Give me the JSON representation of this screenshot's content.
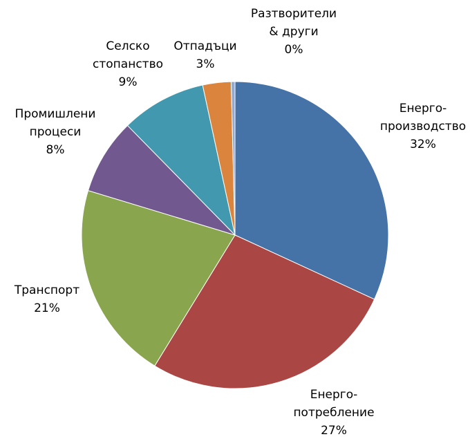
{
  "chart_data": {
    "type": "pie",
    "categories": [
      [
        "Енерго-",
        "производство"
      ],
      [
        "Енерго-",
        "потребление"
      ],
      [
        "Транспорт"
      ],
      [
        "Промишлени",
        "процеси"
      ],
      [
        "Селско",
        "стопанство"
      ],
      [
        "Отпадъци"
      ],
      [
        "Разтворители",
        "& други"
      ]
    ],
    "values": [
      32,
      27,
      21,
      8,
      9,
      3,
      0.4
    ],
    "value_labels": [
      "32%",
      "27%",
      "21%",
      "8%",
      "9%",
      "3%",
      "0%"
    ],
    "colors": [
      "#4572a7",
      "#aa4643",
      "#89a54e",
      "#71588f",
      "#4198af",
      "#db843d",
      "#93a9cf"
    ]
  }
}
